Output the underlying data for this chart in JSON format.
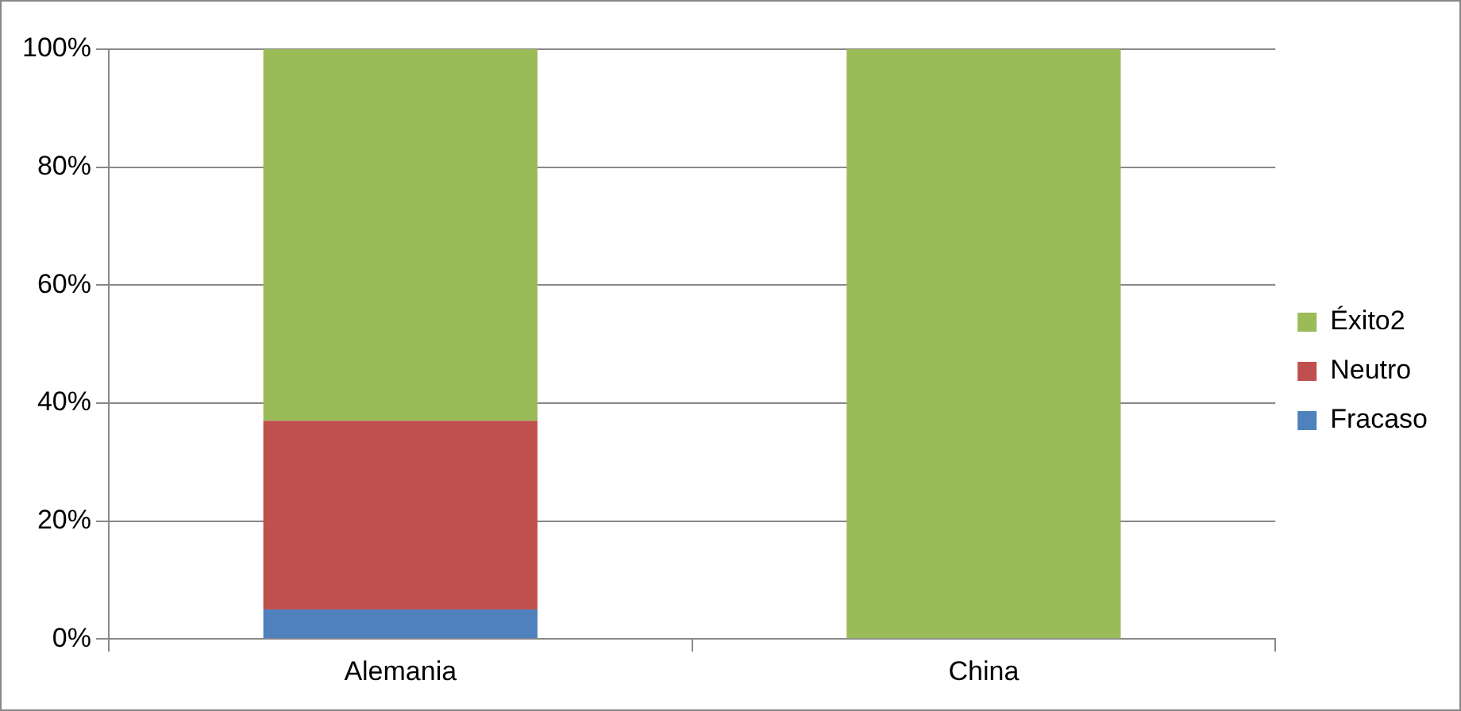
{
  "chart_data": {
    "type": "bar",
    "stacked": true,
    "categories": [
      "Alemania",
      "China"
    ],
    "series": [
      {
        "name": "Fracaso",
        "color": "#4f81bd",
        "values": [
          5,
          0
        ]
      },
      {
        "name": "Neutro",
        "color": "#c0504d",
        "values": [
          32,
          0
        ]
      },
      {
        "name": "Éxito2",
        "color": "#9bbb59",
        "values": [
          63,
          100
        ]
      }
    ],
    "ylim": [
      0,
      100
    ],
    "yticks": [
      {
        "value": 0,
        "label": "0%"
      },
      {
        "value": 20,
        "label": "20%"
      },
      {
        "value": 40,
        "label": "40%"
      },
      {
        "value": 60,
        "label": "60%"
      },
      {
        "value": 80,
        "label": "80%"
      },
      {
        "value": 100,
        "label": "100%"
      }
    ],
    "grid": "y",
    "legend": "right"
  }
}
